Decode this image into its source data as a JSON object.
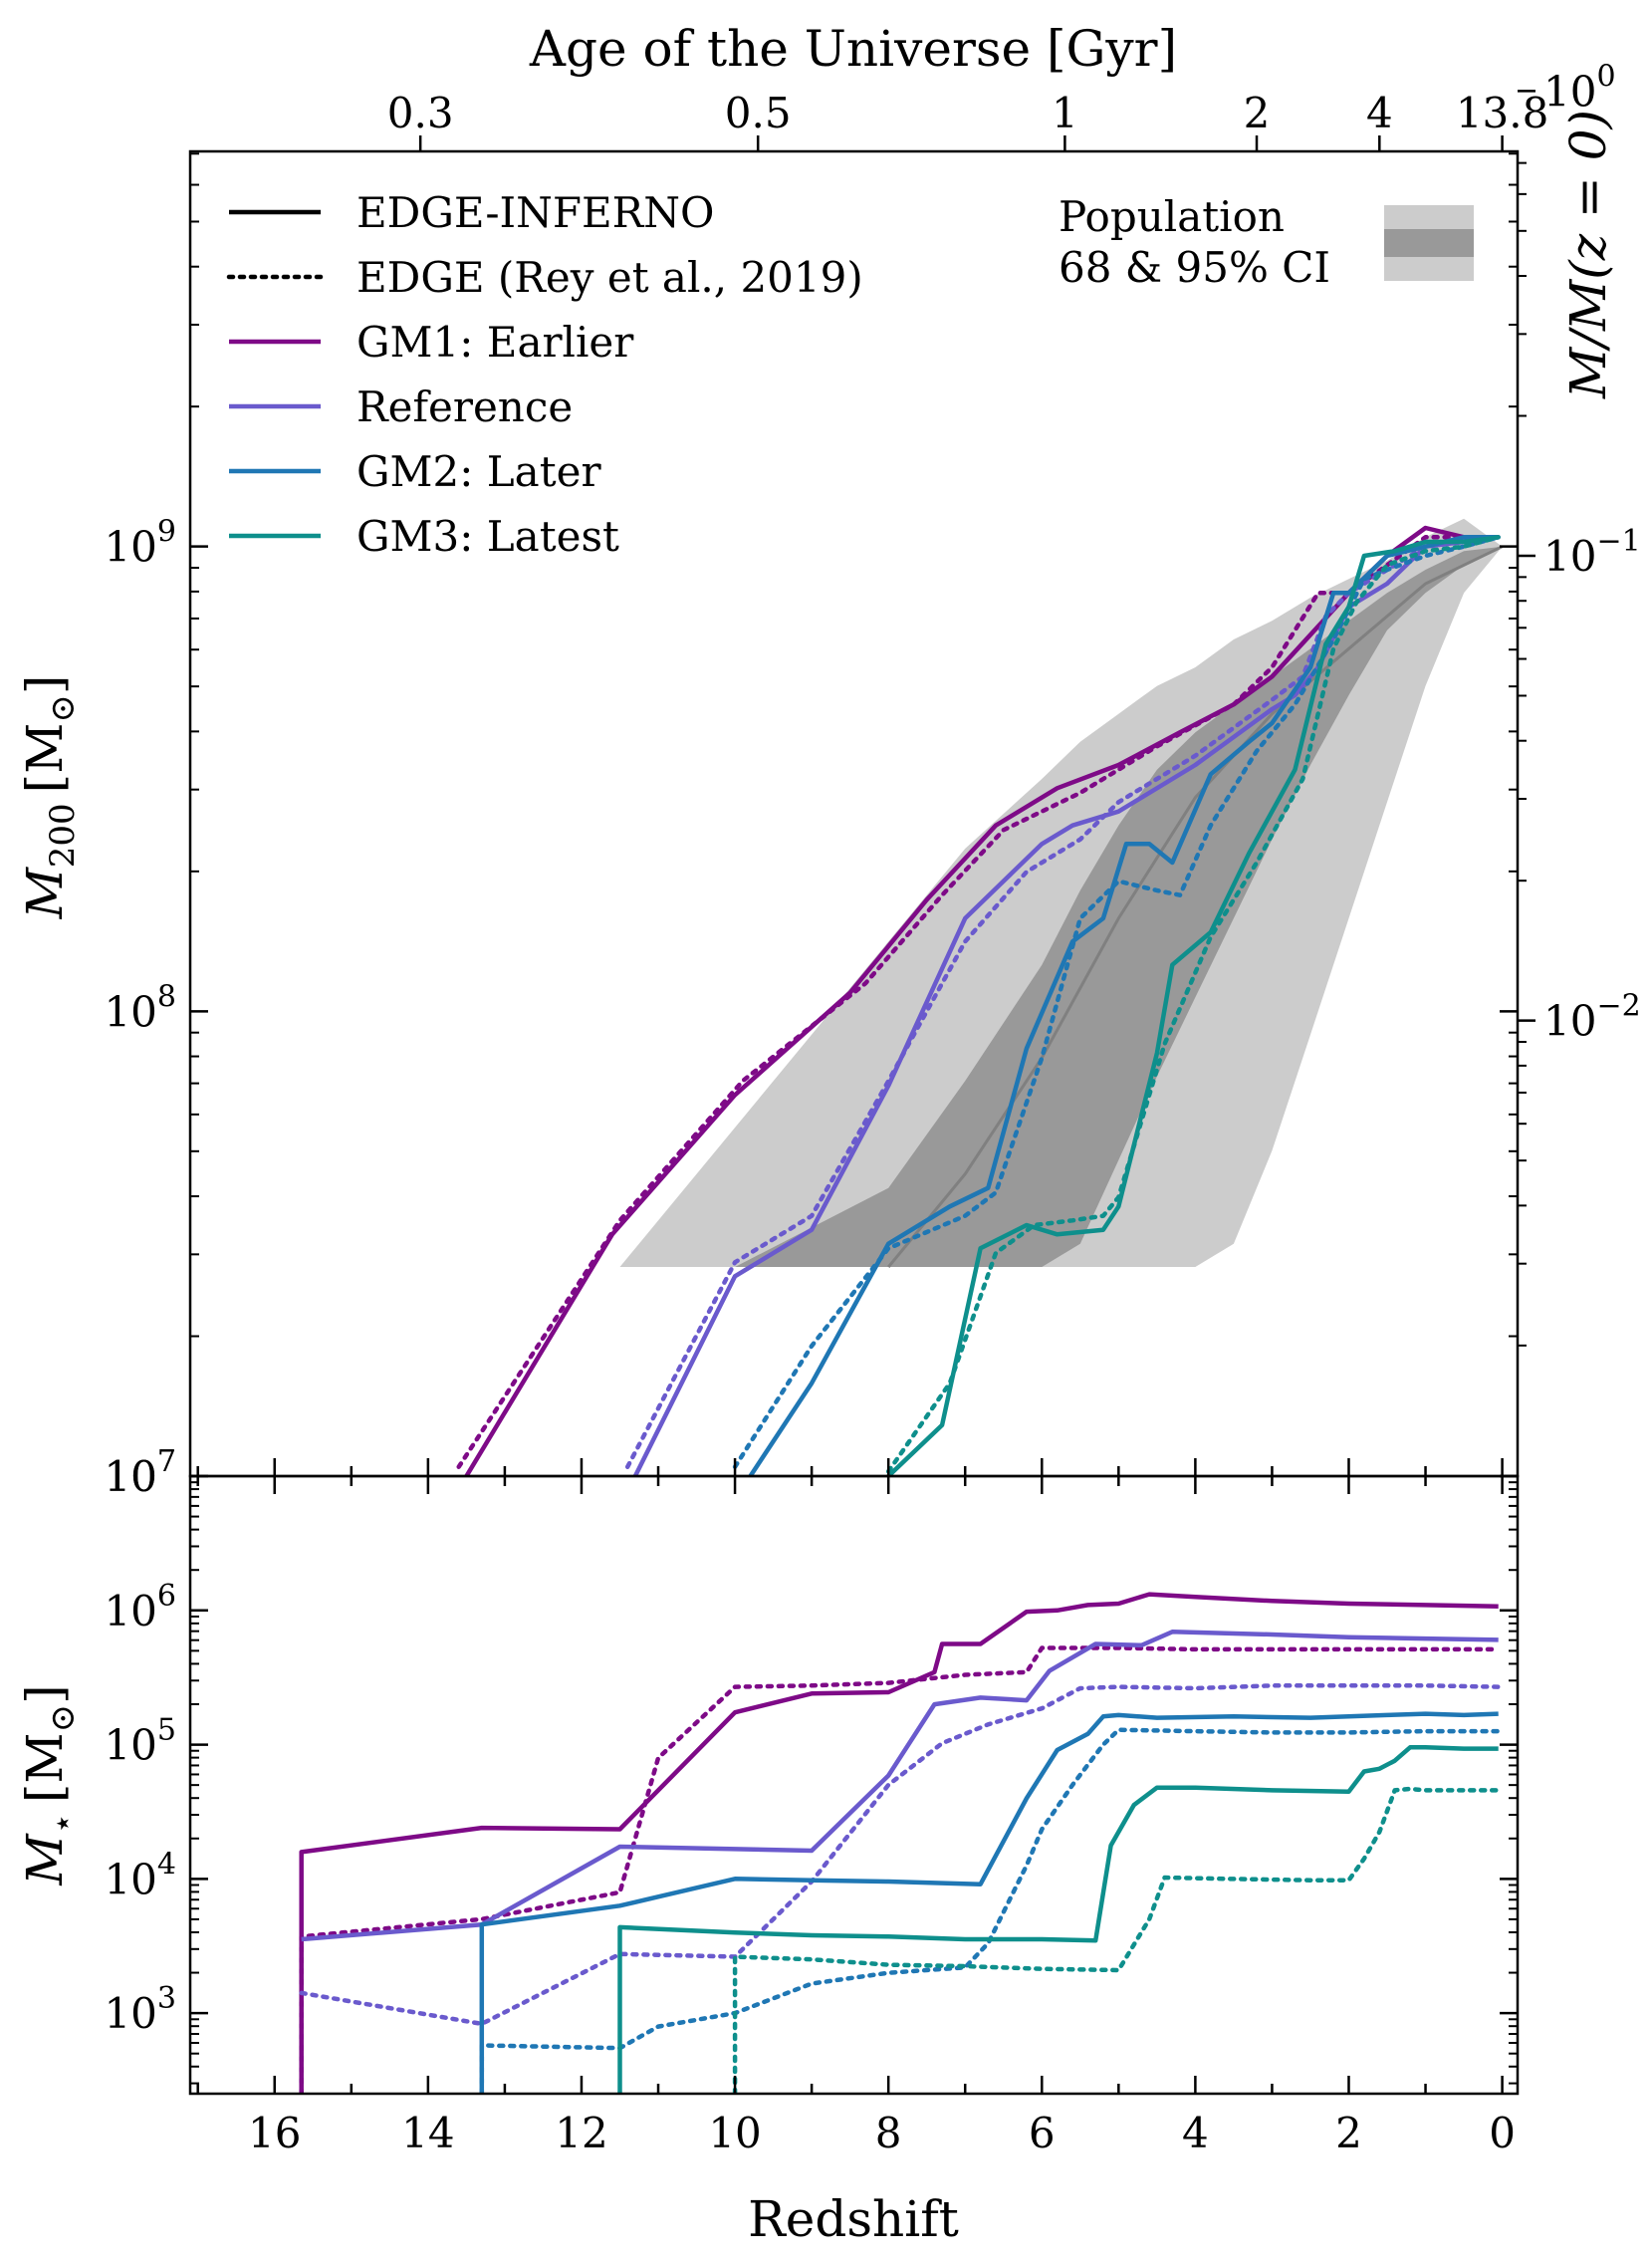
{
  "chart_data": [
    {
      "panel": "top",
      "type": "line",
      "xlabel": "",
      "ylabel": "M_200 [M_⊙]",
      "ylabel_parts": {
        "sym": "M",
        "sub": "200",
        "unit": "[M",
        "unit_sub": "⊙",
        "close": "]"
      },
      "ylabel_right": "M/M(z = 0)",
      "top_axis_label": "Age of the Universe [Gyr]",
      "top_ticks": [
        {
          "label": "0.3",
          "z": 14.1
        },
        {
          "label": "0.5",
          "z": 9.7
        },
        {
          "label": "1",
          "z": 5.7
        },
        {
          "label": "2",
          "z": 3.2
        },
        {
          "label": "4",
          "z": 1.6
        },
        {
          "label": "13.8",
          "z": 0
        }
      ],
      "xlim": [
        17.1,
        -0.2
      ],
      "ylim_log10": [
        7,
        9.85
      ],
      "yticks": [
        {
          "exp": 7,
          "base": "10",
          "sup": "7"
        },
        {
          "exp": 8,
          "base": "10",
          "sup": "8"
        },
        {
          "exp": 9,
          "base": "10",
          "sup": "9"
        }
      ],
      "right_ticks": [
        {
          "exp": -2,
          "base": "10",
          "sup": "−2"
        },
        {
          "exp": -1,
          "base": "10",
          "sup": "−1"
        },
        {
          "exp": 0,
          "base": "10",
          "sup": "0"
        }
      ],
      "right_axis_ref_log10_mass": 9.98,
      "population_band": {
        "label_line1": "Population",
        "label_line2": "68 & 95% CI",
        "z": [
          15.7,
          11.5,
          10,
          8,
          7,
          6,
          5.5,
          5,
          4.5,
          4,
          3.5,
          3,
          2.5,
          2,
          1.5,
          1,
          0.5,
          0
        ],
        "outer_high": [
          7.45,
          7.45,
          7.75,
          8.15,
          8.35,
          8.5,
          8.58,
          8.64,
          8.7,
          8.74,
          8.8,
          8.84,
          8.89,
          8.93,
          8.97,
          9.02,
          9.06,
          9.0
        ],
        "outer_low": [
          7.45,
          7.45,
          7.45,
          7.45,
          7.45,
          7.45,
          7.45,
          7.45,
          7.45,
          7.45,
          7.5,
          7.7,
          7.95,
          8.2,
          8.45,
          8.7,
          8.9,
          9.0
        ],
        "inner_high": [
          7.45,
          7.45,
          7.45,
          7.62,
          7.85,
          8.1,
          8.26,
          8.4,
          8.52,
          8.6,
          8.66,
          8.72,
          8.78,
          8.84,
          8.9,
          8.95,
          8.99,
          9.0
        ],
        "inner_low": [
          7.45,
          7.45,
          7.45,
          7.45,
          7.45,
          7.45,
          7.5,
          7.68,
          7.86,
          8.03,
          8.2,
          8.37,
          8.53,
          8.68,
          8.82,
          8.9,
          8.96,
          9.0
        ],
        "median_z": [
          8,
          7,
          6,
          5,
          4,
          3,
          2,
          1,
          0
        ],
        "median": [
          7.45,
          7.65,
          7.9,
          8.2,
          8.46,
          8.64,
          8.78,
          8.92,
          9.0
        ]
      },
      "series": [
        {
          "name": "GM1: Earlier",
          "color": "#7e0a87",
          "style": "solid",
          "x": [
            13.5,
            11.6,
            10.0,
            8.5,
            7.5,
            6.6,
            5.8,
            5.0,
            4.2,
            3.5,
            3.0,
            2.5,
            2.0,
            1.5,
            1.0,
            0.5,
            0.05
          ],
          "y": [
            7.0,
            7.52,
            7.82,
            8.04,
            8.24,
            8.4,
            8.48,
            8.53,
            8.6,
            8.66,
            8.72,
            8.81,
            8.9,
            8.98,
            9.04,
            9.02,
            9.02
          ]
        },
        {
          "name": "GM1: Earlier",
          "color": "#7e0a87",
          "style": "dotted",
          "x": [
            13.6,
            11.5,
            9.9,
            8.3,
            7.3,
            6.5,
            5.5,
            4.5,
            3.5,
            3.0,
            2.4,
            2.0,
            1.5,
            1.0,
            0.5,
            0.05
          ],
          "y": [
            7.02,
            7.55,
            7.85,
            8.06,
            8.25,
            8.39,
            8.47,
            8.57,
            8.66,
            8.74,
            8.9,
            8.9,
            8.96,
            9.02,
            9.02,
            9.02
          ]
        },
        {
          "name": "Reference",
          "color": "#6a5acd",
          "style": "solid",
          "x": [
            11.3,
            10.0,
            9.0,
            8.0,
            7.0,
            6.0,
            5.6,
            5.0,
            4.0,
            3.0,
            2.7,
            2.4,
            2.0,
            1.5,
            1.0,
            0.5,
            0.05
          ],
          "y": [
            7.0,
            7.43,
            7.53,
            7.84,
            8.2,
            8.36,
            8.4,
            8.43,
            8.53,
            8.65,
            8.68,
            8.74,
            8.87,
            8.92,
            9.0,
            9.01,
            9.02
          ]
        },
        {
          "name": "Reference",
          "color": "#6a5acd",
          "style": "dotted",
          "x": [
            11.4,
            10.0,
            9.0,
            8.0,
            7.0,
            6.2,
            5.5,
            5.0,
            4.0,
            3.0,
            2.6,
            2.3,
            2.0,
            1.5,
            1.0,
            0.5,
            0.05
          ],
          "y": [
            7.02,
            7.46,
            7.56,
            7.85,
            8.15,
            8.3,
            8.37,
            8.45,
            8.55,
            8.67,
            8.72,
            8.85,
            8.9,
            8.95,
            9.0,
            9.01,
            9.02
          ]
        },
        {
          "name": "GM2: Later",
          "color": "#1f77b4",
          "style": "solid",
          "x": [
            9.8,
            9.0,
            8.0,
            7.2,
            6.7,
            6.2,
            5.6,
            5.2,
            4.9,
            4.6,
            4.3,
            3.8,
            3.3,
            3.0,
            2.5,
            2.2,
            2.0,
            1.5,
            1.0,
            0.5,
            0.05
          ],
          "y": [
            7.0,
            7.2,
            7.5,
            7.58,
            7.62,
            7.92,
            8.15,
            8.2,
            8.36,
            8.36,
            8.32,
            8.51,
            8.58,
            8.62,
            8.74,
            8.9,
            8.9,
            8.98,
            9.0,
            9.02,
            9.02
          ]
        },
        {
          "name": "GM2: Later",
          "color": "#1f77b4",
          "style": "dotted",
          "x": [
            10.0,
            9.0,
            8.0,
            7.0,
            6.6,
            6.0,
            5.5,
            5.0,
            4.5,
            4.2,
            3.8,
            3.2,
            2.7,
            2.2,
            1.8,
            1.5,
            1.0,
            0.5,
            0.05
          ],
          "y": [
            7.02,
            7.28,
            7.49,
            7.56,
            7.61,
            7.9,
            8.2,
            8.28,
            8.26,
            8.25,
            8.4,
            8.56,
            8.66,
            8.8,
            8.93,
            8.95,
            8.98,
            9.0,
            9.02
          ]
        },
        {
          "name": "GM3: Latest",
          "color": "#0e8f8c",
          "style": "solid",
          "x": [
            8.0,
            7.3,
            6.8,
            6.2,
            5.8,
            5.2,
            5.0,
            4.5,
            4.3,
            3.8,
            3.3,
            2.7,
            2.3,
            2.0,
            1.8,
            1.4,
            1.0,
            0.5,
            0.05
          ],
          "y": [
            7.0,
            7.11,
            7.49,
            7.54,
            7.52,
            7.53,
            7.58,
            7.91,
            8.1,
            8.17,
            8.34,
            8.52,
            8.79,
            8.87,
            8.98,
            8.99,
            9.01,
            9.01,
            9.02
          ]
        },
        {
          "name": "GM3: Latest",
          "color": "#0e8f8c",
          "style": "dotted",
          "x": [
            8.0,
            7.2,
            6.6,
            6.1,
            5.6,
            5.2,
            5.0,
            4.4,
            3.8,
            3.2,
            2.6,
            2.2,
            1.9,
            1.5,
            1.0,
            0.5,
            0.05
          ],
          "y": [
            7.01,
            7.2,
            7.48,
            7.54,
            7.55,
            7.56,
            7.6,
            7.93,
            8.16,
            8.32,
            8.5,
            8.78,
            8.88,
            8.96,
            8.99,
            9.0,
            9.02
          ]
        }
      ],
      "legend": [
        {
          "label": "EDGE-INFERNO",
          "style": "solid",
          "color": "#000000"
        },
        {
          "label": "EDGE (Rey et al., 2019)",
          "style": "dotted",
          "color": "#000000"
        },
        {
          "label": "GM1: Earlier",
          "style": "solid",
          "color": "#7e0a87"
        },
        {
          "label": "Reference",
          "style": "solid",
          "color": "#6a5acd"
        },
        {
          "label": "GM2: Later",
          "style": "solid",
          "color": "#1f77b4"
        },
        {
          "label": "GM3: Latest",
          "style": "solid",
          "color": "#0e8f8c"
        }
      ]
    },
    {
      "panel": "bottom",
      "type": "line",
      "xlabel": "Redshift",
      "ylabel": "M_⋆ [M_⊙]",
      "ylabel_parts": {
        "sym": "M",
        "sub": "⋆",
        "unit": "[M",
        "unit_sub": "⊙",
        "close": "]"
      },
      "xlim": [
        17.1,
        -0.2
      ],
      "xticks": [
        16,
        14,
        12,
        10,
        8,
        6,
        4,
        2,
        0
      ],
      "ylim_log10": [
        2.4,
        7.0
      ],
      "yticks": [
        {
          "exp": 7,
          "base": "10",
          "sup": "7"
        },
        {
          "exp": 6,
          "base": "10",
          "sup": "6"
        },
        {
          "exp": 5,
          "base": "10",
          "sup": "5"
        },
        {
          "exp": 4,
          "base": "10",
          "sup": "4"
        },
        {
          "exp": 3,
          "base": "10",
          "sup": "3"
        }
      ],
      "series": [
        {
          "name": "GM1: Earlier",
          "color": "#7e0a87",
          "style": "solid",
          "x": [
            15.65,
            15.65,
            13.3,
            11.5,
            10.0,
            9.0,
            8.0,
            7.4,
            7.3,
            6.8,
            6.2,
            5.8,
            5.4,
            5.0,
            4.6,
            4.0,
            3.0,
            2.0,
            1.0,
            0.05
          ],
          "y": [
            2.4,
            4.2,
            4.38,
            4.37,
            5.24,
            5.38,
            5.39,
            5.54,
            5.75,
            5.75,
            5.99,
            6.0,
            6.04,
            6.05,
            6.12,
            6.1,
            6.07,
            6.05,
            6.04,
            6.03
          ]
        },
        {
          "name": "GM1: Earlier",
          "color": "#7e0a87",
          "style": "dotted",
          "x": [
            15.65,
            15.65,
            13.3,
            11.5,
            11.0,
            10.0,
            9.0,
            8.0,
            7.0,
            6.2,
            6.0,
            5.6,
            5.0,
            4.0,
            3.0,
            2.0,
            1.0,
            0.05
          ],
          "y": [
            2.4,
            3.57,
            3.7,
            3.9,
            4.9,
            5.43,
            5.44,
            5.46,
            5.52,
            5.54,
            5.72,
            5.72,
            5.72,
            5.71,
            5.71,
            5.71,
            5.71,
            5.71
          ]
        },
        {
          "name": "Reference",
          "color": "#6a5acd",
          "style": "solid",
          "x": [
            15.65,
            13.3,
            11.5,
            9.0,
            8.0,
            7.4,
            6.8,
            6.2,
            5.9,
            5.3,
            4.7,
            4.3,
            3.0,
            2.0,
            1.0,
            0.05
          ],
          "y": [
            3.55,
            3.66,
            4.24,
            4.21,
            4.77,
            5.3,
            5.35,
            5.33,
            5.55,
            5.75,
            5.74,
            5.84,
            5.82,
            5.8,
            5.79,
            5.78
          ]
        },
        {
          "name": "Reference",
          "color": "#6a5acd",
          "style": "dotted",
          "x": [
            15.65,
            13.3,
            11.5,
            10.0,
            9.0,
            8.0,
            7.3,
            6.7,
            6.0,
            5.5,
            5.0,
            4.0,
            3.0,
            2.0,
            1.0,
            0.05
          ],
          "y": [
            3.15,
            2.92,
            3.44,
            3.42,
            3.98,
            4.7,
            5.01,
            5.15,
            5.27,
            5.42,
            5.43,
            5.42,
            5.44,
            5.44,
            5.44,
            5.43
          ]
        },
        {
          "name": "GM2: Later",
          "color": "#1f77b4",
          "style": "solid",
          "x": [
            13.3,
            13.3,
            11.5,
            10.0,
            9.0,
            8.0,
            6.8,
            6.2,
            5.8,
            5.4,
            5.2,
            5.0,
            4.5,
            3.5,
            2.5,
            1.5,
            1.0,
            0.5,
            0.05
          ],
          "y": [
            2.4,
            3.66,
            3.8,
            4.0,
            3.99,
            3.98,
            3.96,
            4.6,
            4.96,
            5.08,
            5.21,
            5.22,
            5.2,
            5.21,
            5.2,
            5.22,
            5.23,
            5.22,
            5.23
          ]
        },
        {
          "name": "GM2: Later",
          "color": "#1f77b4",
          "style": "dotted",
          "x": [
            13.3,
            13.3,
            11.5,
            11.0,
            10.0,
            9.0,
            8.0,
            7.0,
            6.7,
            6.2,
            6.0,
            5.6,
            5.2,
            5.0,
            4.0,
            3.0,
            2.0,
            1.0,
            0.05
          ],
          "y": [
            2.4,
            2.76,
            2.74,
            2.9,
            3.0,
            3.22,
            3.3,
            3.34,
            3.52,
            4.1,
            4.37,
            4.7,
            5.0,
            5.11,
            5.1,
            5.09,
            5.09,
            5.1,
            5.1
          ]
        },
        {
          "name": "GM3: Latest",
          "color": "#0e8f8c",
          "style": "solid",
          "x": [
            11.5,
            11.5,
            10.0,
            9.0,
            8.0,
            7.0,
            6.0,
            5.3,
            5.1,
            4.8,
            4.5,
            4.0,
            3.0,
            2.0,
            1.8,
            1.6,
            1.4,
            1.2,
            1.0,
            0.5,
            0.05
          ],
          "y": [
            2.4,
            3.64,
            3.6,
            3.58,
            3.57,
            3.55,
            3.55,
            3.54,
            4.25,
            4.55,
            4.68,
            4.68,
            4.66,
            4.65,
            4.8,
            4.82,
            4.88,
            4.98,
            4.98,
            4.97,
            4.97
          ]
        },
        {
          "name": "GM3: Latest",
          "color": "#0e8f8c",
          "style": "dotted",
          "x": [
            10.0,
            10.0,
            9.0,
            8.0,
            7.0,
            6.0,
            5.0,
            4.6,
            4.4,
            3.6,
            2.5,
            2.0,
            1.8,
            1.6,
            1.4,
            1.2,
            1.0,
            0.5,
            0.05
          ],
          "y": [
            2.4,
            3.42,
            3.4,
            3.36,
            3.35,
            3.33,
            3.32,
            3.7,
            4.01,
            4.0,
            3.99,
            3.99,
            4.15,
            4.35,
            4.66,
            4.67,
            4.66,
            4.66,
            4.66
          ]
        }
      ]
    }
  ]
}
